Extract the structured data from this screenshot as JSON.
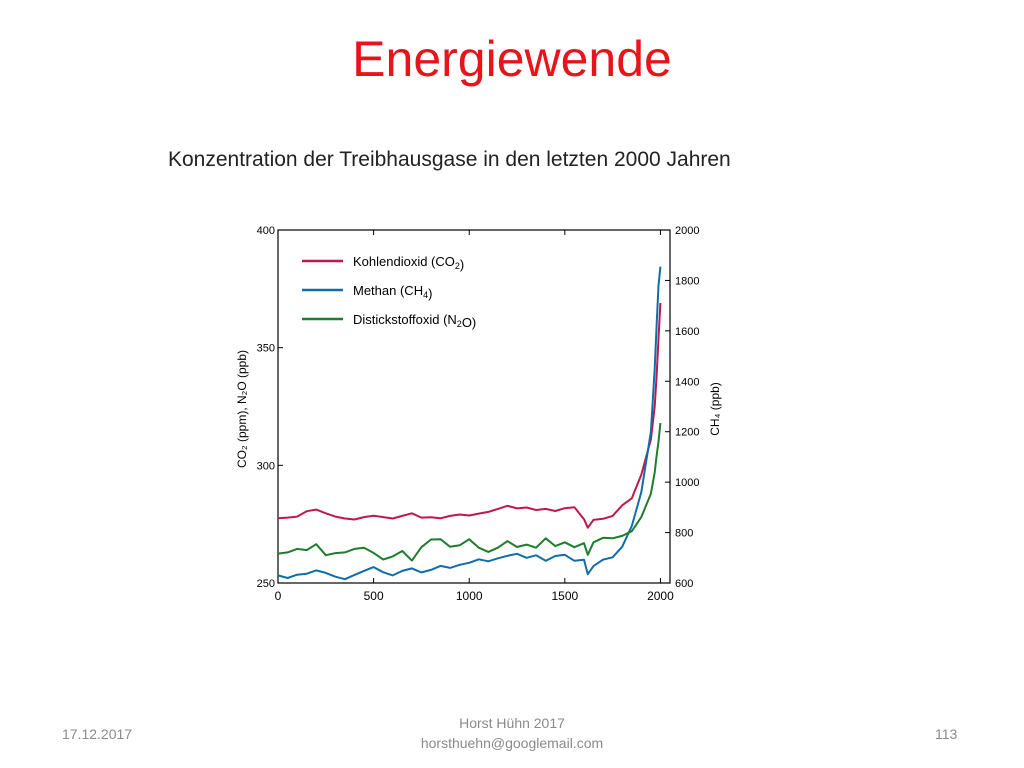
{
  "slide": {
    "title": "Energiewende",
    "subtitle": "Konzentration der Treibhausgase in den letzten 2000 Jahren",
    "footer_date": "17.12.2017",
    "footer_author": "Horst Hühn 2017",
    "footer_email": "horsthuehn@googlemail.com",
    "page_number": "113"
  },
  "chart_data": {
    "type": "line",
    "xlim": [
      0,
      2050
    ],
    "x_ticks": [
      0,
      500,
      1000,
      1500,
      2000
    ],
    "y_left": {
      "label": "CO₂ (ppm), N₂O (ppb)",
      "lim": [
        250,
        400
      ],
      "ticks": [
        250,
        300,
        350,
        400
      ]
    },
    "y_right": {
      "label": "CH₄ (ppb)",
      "lim": [
        600,
        2000
      ],
      "ticks": [
        600,
        800,
        1000,
        1200,
        1400,
        1600,
        1800,
        2000
      ]
    },
    "legend": {
      "placement": "top-left"
    },
    "colors": {
      "co2": "#c0174e",
      "ch4": "#0e6ea8",
      "n2o": "#1e7d2c"
    },
    "series": [
      {
        "key": "co2",
        "name": "Kohlendioxid (CO2)",
        "axis": "left",
        "x": [
          0,
          50,
          100,
          150,
          200,
          250,
          300,
          350,
          400,
          450,
          500,
          550,
          600,
          650,
          700,
          750,
          800,
          850,
          900,
          950,
          1000,
          1050,
          1100,
          1150,
          1200,
          1250,
          1300,
          1350,
          1400,
          1450,
          1500,
          1550,
          1600,
          1620,
          1650,
          1700,
          1750,
          1800,
          1850,
          1900,
          1950,
          1970,
          1980,
          1990,
          2000
        ],
        "values": [
          277.5,
          277.8,
          278.2,
          280.5,
          281.2,
          279.6,
          278.2,
          277.4,
          277.0,
          278.0,
          278.6,
          278.0,
          277.4,
          278.5,
          279.6,
          277.8,
          277.9,
          277.5,
          278.5,
          279.1,
          278.7,
          279.5,
          280.2,
          281.5,
          282.8,
          281.7,
          282.1,
          281.0,
          281.5,
          280.6,
          281.8,
          282.2,
          277.1,
          273.5,
          276.8,
          277.3,
          278.5,
          283.0,
          286.0,
          296.0,
          311.0,
          325.0,
          338.0,
          354.0,
          369.0
        ]
      },
      {
        "key": "ch4",
        "name": "Methan (CH4)",
        "axis": "right",
        "x": [
          0,
          50,
          100,
          150,
          200,
          250,
          300,
          350,
          400,
          450,
          500,
          550,
          600,
          650,
          700,
          750,
          800,
          850,
          900,
          950,
          1000,
          1050,
          1100,
          1150,
          1200,
          1250,
          1300,
          1350,
          1400,
          1450,
          1500,
          1550,
          1600,
          1620,
          1650,
          1700,
          1750,
          1800,
          1850,
          1900,
          1950,
          1970,
          1980,
          1990,
          2000
        ],
        "values": [
          630,
          620,
          633,
          637,
          650,
          640,
          625,
          615,
          632,
          648,
          663,
          643,
          630,
          648,
          658,
          642,
          652,
          668,
          660,
          672,
          680,
          694,
          686,
          698,
          708,
          716,
          700,
          710,
          688,
          707,
          712,
          688,
          692,
          635,
          667,
          693,
          702,
          744,
          826,
          960,
          1200,
          1450,
          1620,
          1780,
          1855
        ]
      },
      {
        "key": "n2o",
        "name": "Distickstoffoxid (N2O)",
        "axis": "left",
        "x": [
          0,
          50,
          100,
          150,
          200,
          250,
          300,
          350,
          400,
          450,
          500,
          550,
          600,
          650,
          700,
          750,
          800,
          850,
          900,
          950,
          1000,
          1050,
          1100,
          1150,
          1200,
          1250,
          1300,
          1350,
          1400,
          1450,
          1500,
          1550,
          1600,
          1620,
          1650,
          1700,
          1750,
          1800,
          1850,
          1900,
          1950,
          1970,
          1980,
          1990,
          2000
        ],
        "values": [
          262.5,
          263.0,
          264.5,
          264.0,
          266.5,
          261.8,
          262.7,
          263.0,
          264.5,
          265.0,
          262.8,
          260.0,
          261.3,
          263.6,
          259.5,
          265.2,
          268.5,
          268.6,
          265.4,
          266.0,
          268.6,
          265.0,
          263.2,
          265.0,
          267.8,
          265.3,
          266.3,
          265.0,
          269.0,
          265.7,
          267.3,
          265.2,
          266.9,
          262.0,
          267.3,
          269.2,
          269.0,
          270.0,
          272.0,
          278.0,
          288.0,
          297.0,
          304.0,
          310.0,
          318.0
        ]
      }
    ]
  }
}
